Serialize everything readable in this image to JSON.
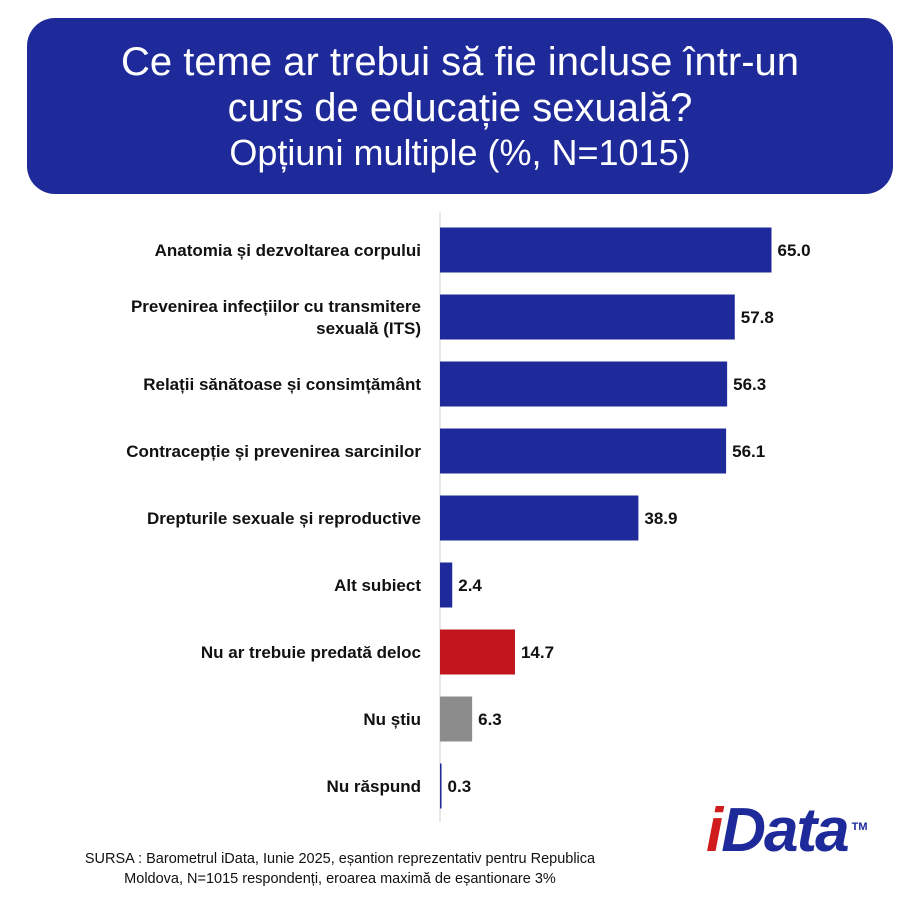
{
  "title": {
    "line1": "Ce teme ar trebui să fie incluse într-un",
    "line2": "curs de educație sexuală?",
    "line3": "Opțiuni multiple (%, N=1015)"
  },
  "chart_data": {
    "type": "bar",
    "orientation": "horizontal",
    "title": "Ce teme ar trebui să fie incluse într-un curs de educație sexuală? Opțiuni multiple (%, N=1015)",
    "categories": [
      [
        "Anatomia și dezvoltarea corpului"
      ],
      [
        "Prevenirea infecțiilor cu transmitere",
        "sexuală (ITS)"
      ],
      [
        "Relații sănătoase și consimțământ"
      ],
      [
        "Contracepție și prevenirea sarcinilor"
      ],
      [
        "Drepturile sexuale și reproductive"
      ],
      [
        "Alt subiect"
      ],
      [
        "Nu ar trebuie predată deloc"
      ],
      [
        "Nu știu"
      ],
      [
        "Nu răspund"
      ]
    ],
    "values": [
      65.0,
      57.8,
      56.3,
      56.1,
      38.9,
      2.4,
      14.7,
      6.3,
      0.3
    ],
    "value_labels": [
      "65.0",
      "57.8",
      "56.3",
      "56.1",
      "38.9",
      "2.4",
      "14.7",
      "6.3",
      "0.3"
    ],
    "colors": [
      "#1f2a9a",
      "#1f2a9a",
      "#1f2a9a",
      "#1f2a9a",
      "#1f2a9a",
      "#1f2a9a",
      "#c0161c",
      "#8c8c8c",
      "#1f2a9a"
    ],
    "xlim": [
      0,
      100
    ],
    "grid": false,
    "legend": "none"
  },
  "source": {
    "line1": "SURSA : Barometrul iData, Iunie 2025, eșantion reprezentativ pentru Republica",
    "line2": "Moldova, N=1015 respondenți, eroarea maximă de eșantionare 3%"
  },
  "logo": {
    "part1": "i",
    "part2": "Data",
    "tm": "TM"
  }
}
